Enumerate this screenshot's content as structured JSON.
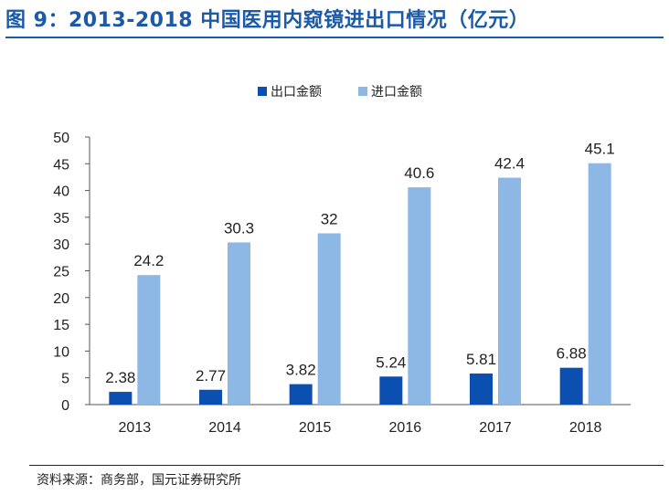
{
  "title": "图 9：2013-2018 中国医用内窥镜进出口情况（亿元）",
  "source": "资料来源：商务部，国元证券研究所",
  "colors": {
    "export": "#0b4fb0",
    "import": "#8db8e6",
    "title": "#1b5aa6"
  },
  "chart_data": {
    "type": "bar",
    "categories": [
      "2013",
      "2014",
      "2015",
      "2016",
      "2017",
      "2018"
    ],
    "series": [
      {
        "name": "出口金额",
        "values": [
          2.38,
          2.77,
          3.82,
          5.24,
          5.81,
          6.88
        ],
        "labels": [
          "2.38",
          "2.77",
          "3.82",
          "5.24",
          "5.81",
          "6.88"
        ]
      },
      {
        "name": "进口金额",
        "values": [
          24.2,
          30.3,
          32,
          40.6,
          42.4,
          45.1
        ],
        "labels": [
          "24.2",
          "30.3",
          "32",
          "40.6",
          "42.4",
          "45.1"
        ]
      }
    ],
    "ylim": [
      0,
      50
    ],
    "yticks": [
      0,
      5,
      10,
      15,
      20,
      25,
      30,
      35,
      40,
      45,
      50
    ],
    "legend": "top-center",
    "grid": false
  }
}
